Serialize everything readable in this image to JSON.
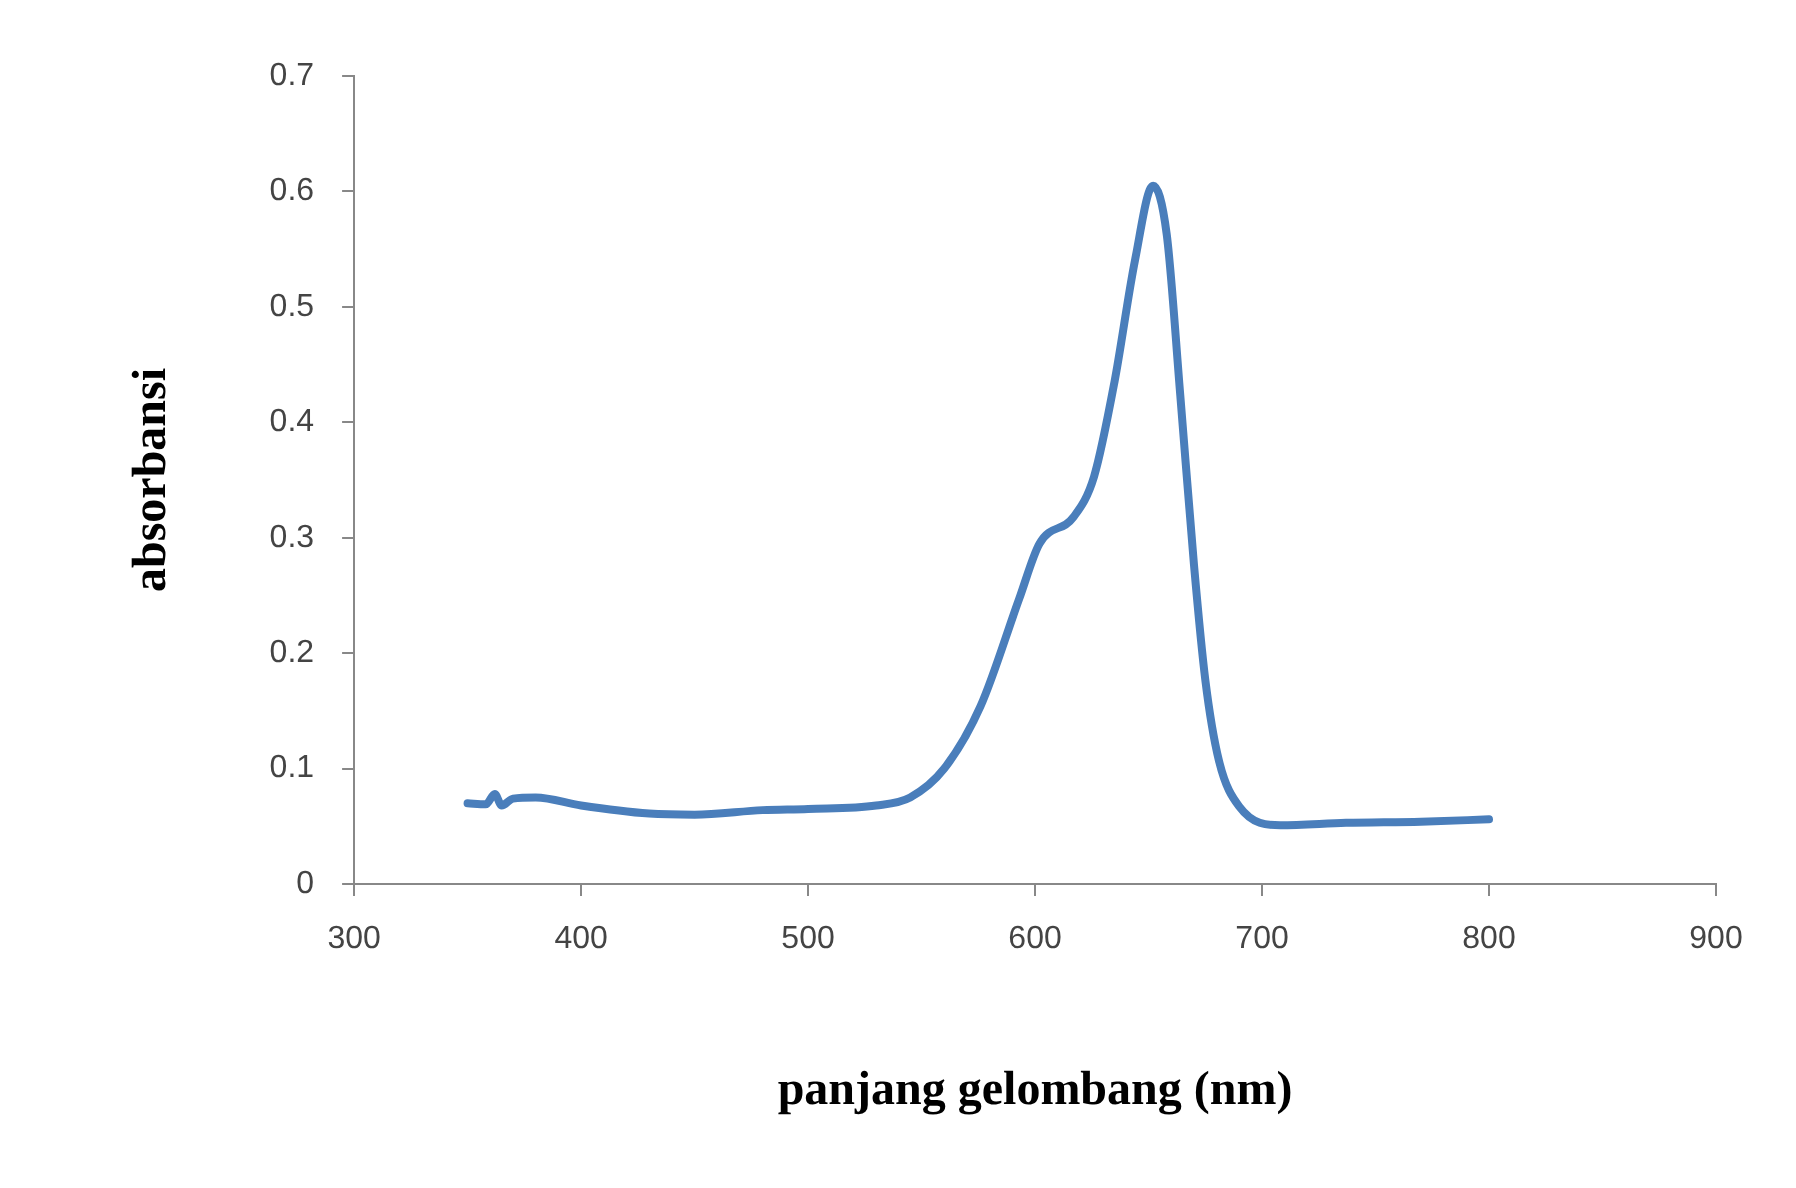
{
  "chart_data": {
    "type": "line",
    "xlabel": "panjang gelombang (nm)",
    "ylabel": "absorbansi",
    "x": [
      350,
      358,
      362,
      365,
      370,
      380,
      400,
      430,
      450,
      480,
      500,
      530,
      545,
      560,
      576,
      593,
      602,
      617,
      626,
      635,
      644,
      652,
      658,
      664,
      670,
      675,
      681,
      690,
      708,
      737,
      770,
      800
    ],
    "series": [
      {
        "color": "#4a7ebb",
        "values": [
          0.07,
          0.069,
          0.078,
          0.068,
          0.074,
          0.075,
          0.068,
          0.061,
          0.06,
          0.064,
          0.065,
          0.068,
          0.075,
          0.1,
          0.154,
          0.247,
          0.295,
          0.318,
          0.353,
          0.435,
          0.54,
          0.605,
          0.563,
          0.423,
          0.277,
          0.177,
          0.107,
          0.067,
          0.051,
          0.053,
          0.054,
          0.056
        ]
      }
    ],
    "xlim": [
      300,
      900
    ],
    "xticks": [
      300,
      400,
      500,
      600,
      700,
      800,
      900
    ],
    "ylim": [
      0,
      0.7
    ],
    "yticks": [
      0,
      0.1,
      0.2,
      0.3,
      0.4,
      0.5,
      0.6,
      0.7
    ],
    "grid": false,
    "legend": false,
    "marker": "none",
    "line_style": "solid"
  }
}
